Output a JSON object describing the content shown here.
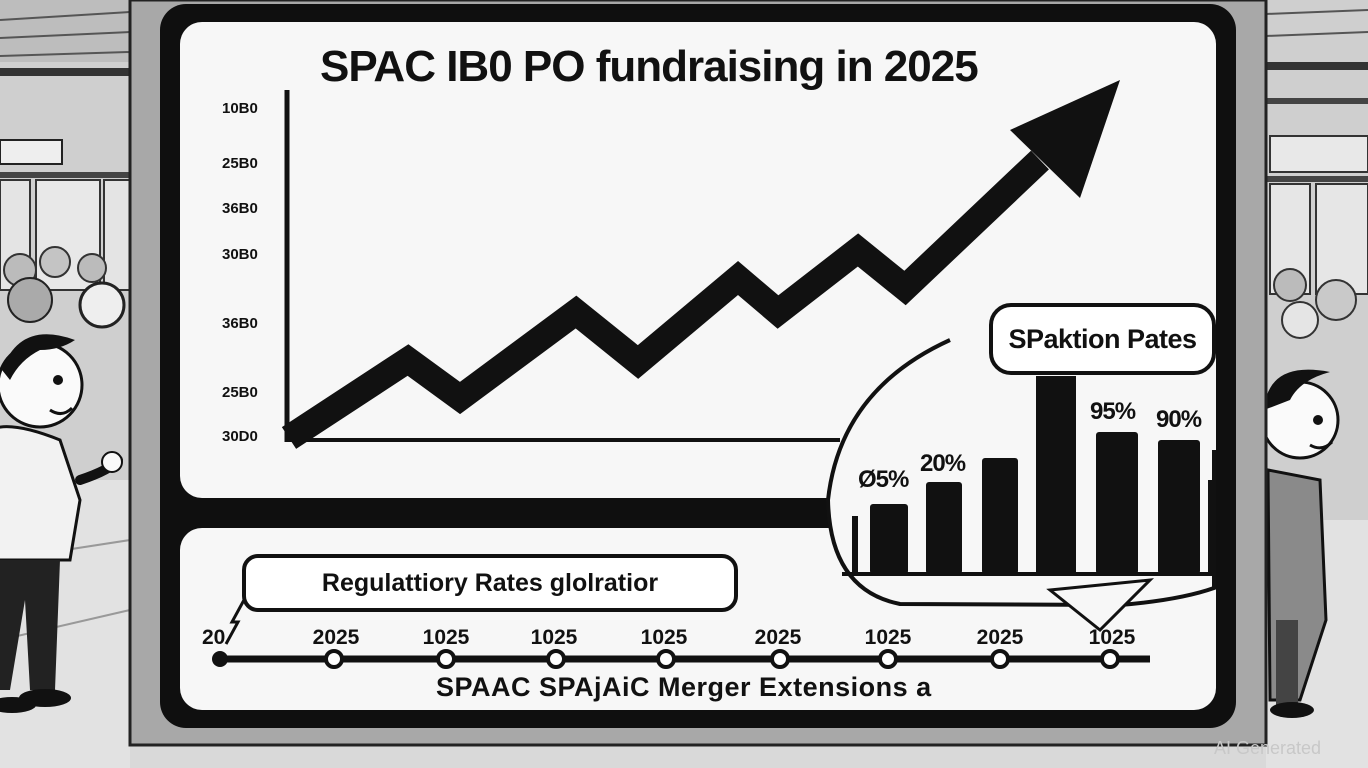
{
  "title": "SPAC IB0 PO fundraising in 2025",
  "y_ticks": [
    "10B0",
    "25B0",
    "36B0",
    "30B0",
    "36B0",
    "25B0",
    "30D0"
  ],
  "bubble_label": "SPaktion Pates",
  "bar_pcts": [
    "95%",
    "90%",
    "20%",
    "95%"
  ],
  "bar_pct_first": "Ø5%",
  "regulatory_label": "Regulattiory Rates glolratior",
  "timeline_start": "20",
  "timeline_years": [
    "2025",
    "1025",
    "1025",
    "1025",
    "2025",
    "1025",
    "2025",
    "1025"
  ],
  "caption": "SPAAC SPAjAiC Merger Extensions a",
  "watermark": "AI Generated"
}
